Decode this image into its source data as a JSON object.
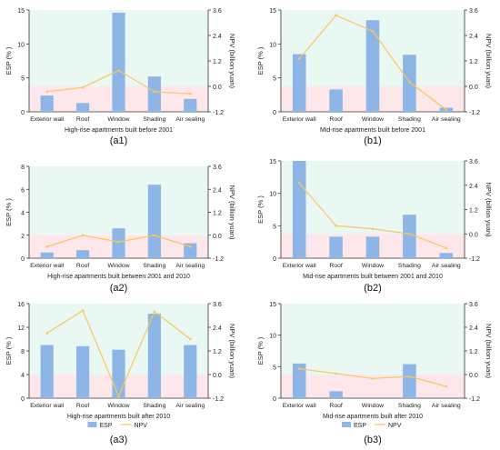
{
  "colors": {
    "bar": "#8db6e6",
    "line": "#f7c75a",
    "bg_top": "#e9f8f3",
    "bg_bottom": "#fde7ea",
    "axis": "#333333"
  },
  "legend": {
    "esp": "ESP",
    "npv": "NPV"
  },
  "chart_data": [
    {
      "id": "a1",
      "panel_label": "(a1)",
      "type": "bar",
      "xlabel": "High-rise apartments built before 2001",
      "ylabel": "ESP (% )",
      "y2label": "NPV (billion yuan)",
      "categories": [
        "Exterior wall",
        "Roof",
        "Window",
        "Shading",
        "Air sealing"
      ],
      "ylim": [
        0,
        15
      ],
      "yticks": [
        "0",
        "5",
        "10",
        "15"
      ],
      "y2lim": [
        -1.2,
        3.6
      ],
      "y2ticks": [
        "-1.2",
        "0.0",
        "1.2",
        "2.4",
        "3.6"
      ],
      "series": [
        {
          "name": "ESP",
          "type": "bar",
          "values": [
            2.4,
            1.3,
            14.6,
            5.2,
            1.9
          ]
        },
        {
          "name": "NPV",
          "type": "line",
          "axis": "right",
          "values": [
            -0.25,
            -0.05,
            0.75,
            -0.25,
            -0.35
          ]
        }
      ],
      "legend": false
    },
    {
      "id": "b1",
      "panel_label": "(b1)",
      "type": "bar",
      "xlabel": "Mid-rise apartments built before 2001",
      "ylabel": "ESP (% )",
      "y2label": "NPV (billion yuan)",
      "categories": [
        "Exterior wall",
        "Roof",
        "Window",
        "Shading",
        "Air sealing"
      ],
      "ylim": [
        0,
        15
      ],
      "yticks": [
        "0",
        "5",
        "10",
        "15"
      ],
      "y2lim": [
        -1.2,
        3.6
      ],
      "y2ticks": [
        "-1.2",
        "0.0",
        "1.2",
        "2.4",
        "3.6"
      ],
      "series": [
        {
          "name": "ESP",
          "type": "bar",
          "values": [
            8.5,
            3.3,
            13.5,
            8.4,
            0.6
          ]
        },
        {
          "name": "NPV",
          "type": "line",
          "axis": "right",
          "values": [
            1.3,
            3.35,
            2.6,
            0.2,
            -1.1
          ]
        }
      ],
      "legend": false
    },
    {
      "id": "a2",
      "panel_label": "(a2)",
      "type": "bar",
      "xlabel": "High-rise apartments built  between 2001 and 2010",
      "ylabel": "ESP (% )",
      "y2label": "NPV (billion yuan)",
      "categories": [
        "Exterior wall",
        "Roof",
        "Window",
        "Shading",
        "Air sealing"
      ],
      "ylim": [
        0,
        8
      ],
      "yticks": [
        "0",
        "2",
        "4",
        "6",
        "8"
      ],
      "y2lim": [
        -1.2,
        3.6
      ],
      "y2ticks": [
        "-1.2",
        "0.0",
        "1.2",
        "2.4",
        "3.6"
      ],
      "series": [
        {
          "name": "ESP",
          "type": "bar",
          "values": [
            0.5,
            0.7,
            2.6,
            6.4,
            1.3
          ]
        },
        {
          "name": "NPV",
          "type": "line",
          "axis": "right",
          "values": [
            -0.6,
            0.0,
            -0.35,
            0.0,
            -0.6
          ]
        }
      ],
      "legend": false
    },
    {
      "id": "b2",
      "panel_label": "(b2)",
      "type": "bar",
      "xlabel": "Mid-rise apartments built between 2001 and 2010",
      "ylabel": "ESP (% )",
      "y2label": "NPV (billion yuan)",
      "categories": [
        "Exterior wall",
        "Roof",
        "Window",
        "Shading",
        "Air sealing"
      ],
      "ylim": [
        0,
        15
      ],
      "yticks": [
        "0",
        "5",
        "10",
        "15"
      ],
      "y2lim": [
        -1.2,
        3.6
      ],
      "y2ticks": [
        "-1.2",
        "0.0",
        "1.2",
        "2.4",
        "3.6"
      ],
      "series": [
        {
          "name": "ESP",
          "type": "bar",
          "values": [
            15.0,
            3.3,
            3.3,
            6.7,
            0.8
          ]
        },
        {
          "name": "NPV",
          "type": "line",
          "axis": "right",
          "values": [
            2.5,
            0.4,
            0.25,
            0.0,
            -0.7
          ]
        }
      ],
      "legend": false
    },
    {
      "id": "a3",
      "panel_label": "(a3)",
      "type": "bar",
      "xlabel": "High-rise apartments built  after 2010",
      "ylabel": "ESP (% )",
      "y2label": "NPV (billion yuan)",
      "categories": [
        "Exterior wall",
        "Roof",
        "Window",
        "Shading",
        "Air sealing"
      ],
      "ylim": [
        0,
        16
      ],
      "yticks": [
        "0",
        "4",
        "8",
        "12",
        "16"
      ],
      "y2lim": [
        -1.2,
        3.6
      ],
      "y2ticks": [
        "-1.2",
        "0.0",
        "1.2",
        "2.4",
        "3.6"
      ],
      "series": [
        {
          "name": "ESP",
          "type": "bar",
          "values": [
            9.0,
            8.8,
            8.2,
            14.3,
            9.0
          ]
        },
        {
          "name": "NPV",
          "type": "line",
          "axis": "right",
          "values": [
            2.1,
            3.25,
            -1.1,
            3.2,
            1.8
          ]
        }
      ],
      "legend": true
    },
    {
      "id": "b3",
      "panel_label": "(b3)",
      "type": "bar",
      "xlabel": "Mid-rise apartments built  after 2010",
      "ylabel": "ESP (% )",
      "y2label": "NPV (billion yuan)",
      "categories": [
        "Exterior wall",
        "Roof",
        "Window",
        "Shading",
        "Air sealing"
      ],
      "ylim": [
        0,
        15
      ],
      "yticks": [
        "0",
        "5",
        "10",
        "15"
      ],
      "y2lim": [
        -1.2,
        3.6
      ],
      "y2ticks": [
        "-1.2",
        "0.0",
        "1.2",
        "2.4",
        "3.6"
      ],
      "series": [
        {
          "name": "ESP",
          "type": "bar",
          "values": [
            5.5,
            1.1,
            0.0,
            5.4,
            0.0
          ]
        },
        {
          "name": "NPV",
          "type": "line",
          "axis": "right",
          "values": [
            0.3,
            0.05,
            -0.2,
            -0.1,
            -0.6
          ]
        }
      ],
      "legend": true
    }
  ]
}
